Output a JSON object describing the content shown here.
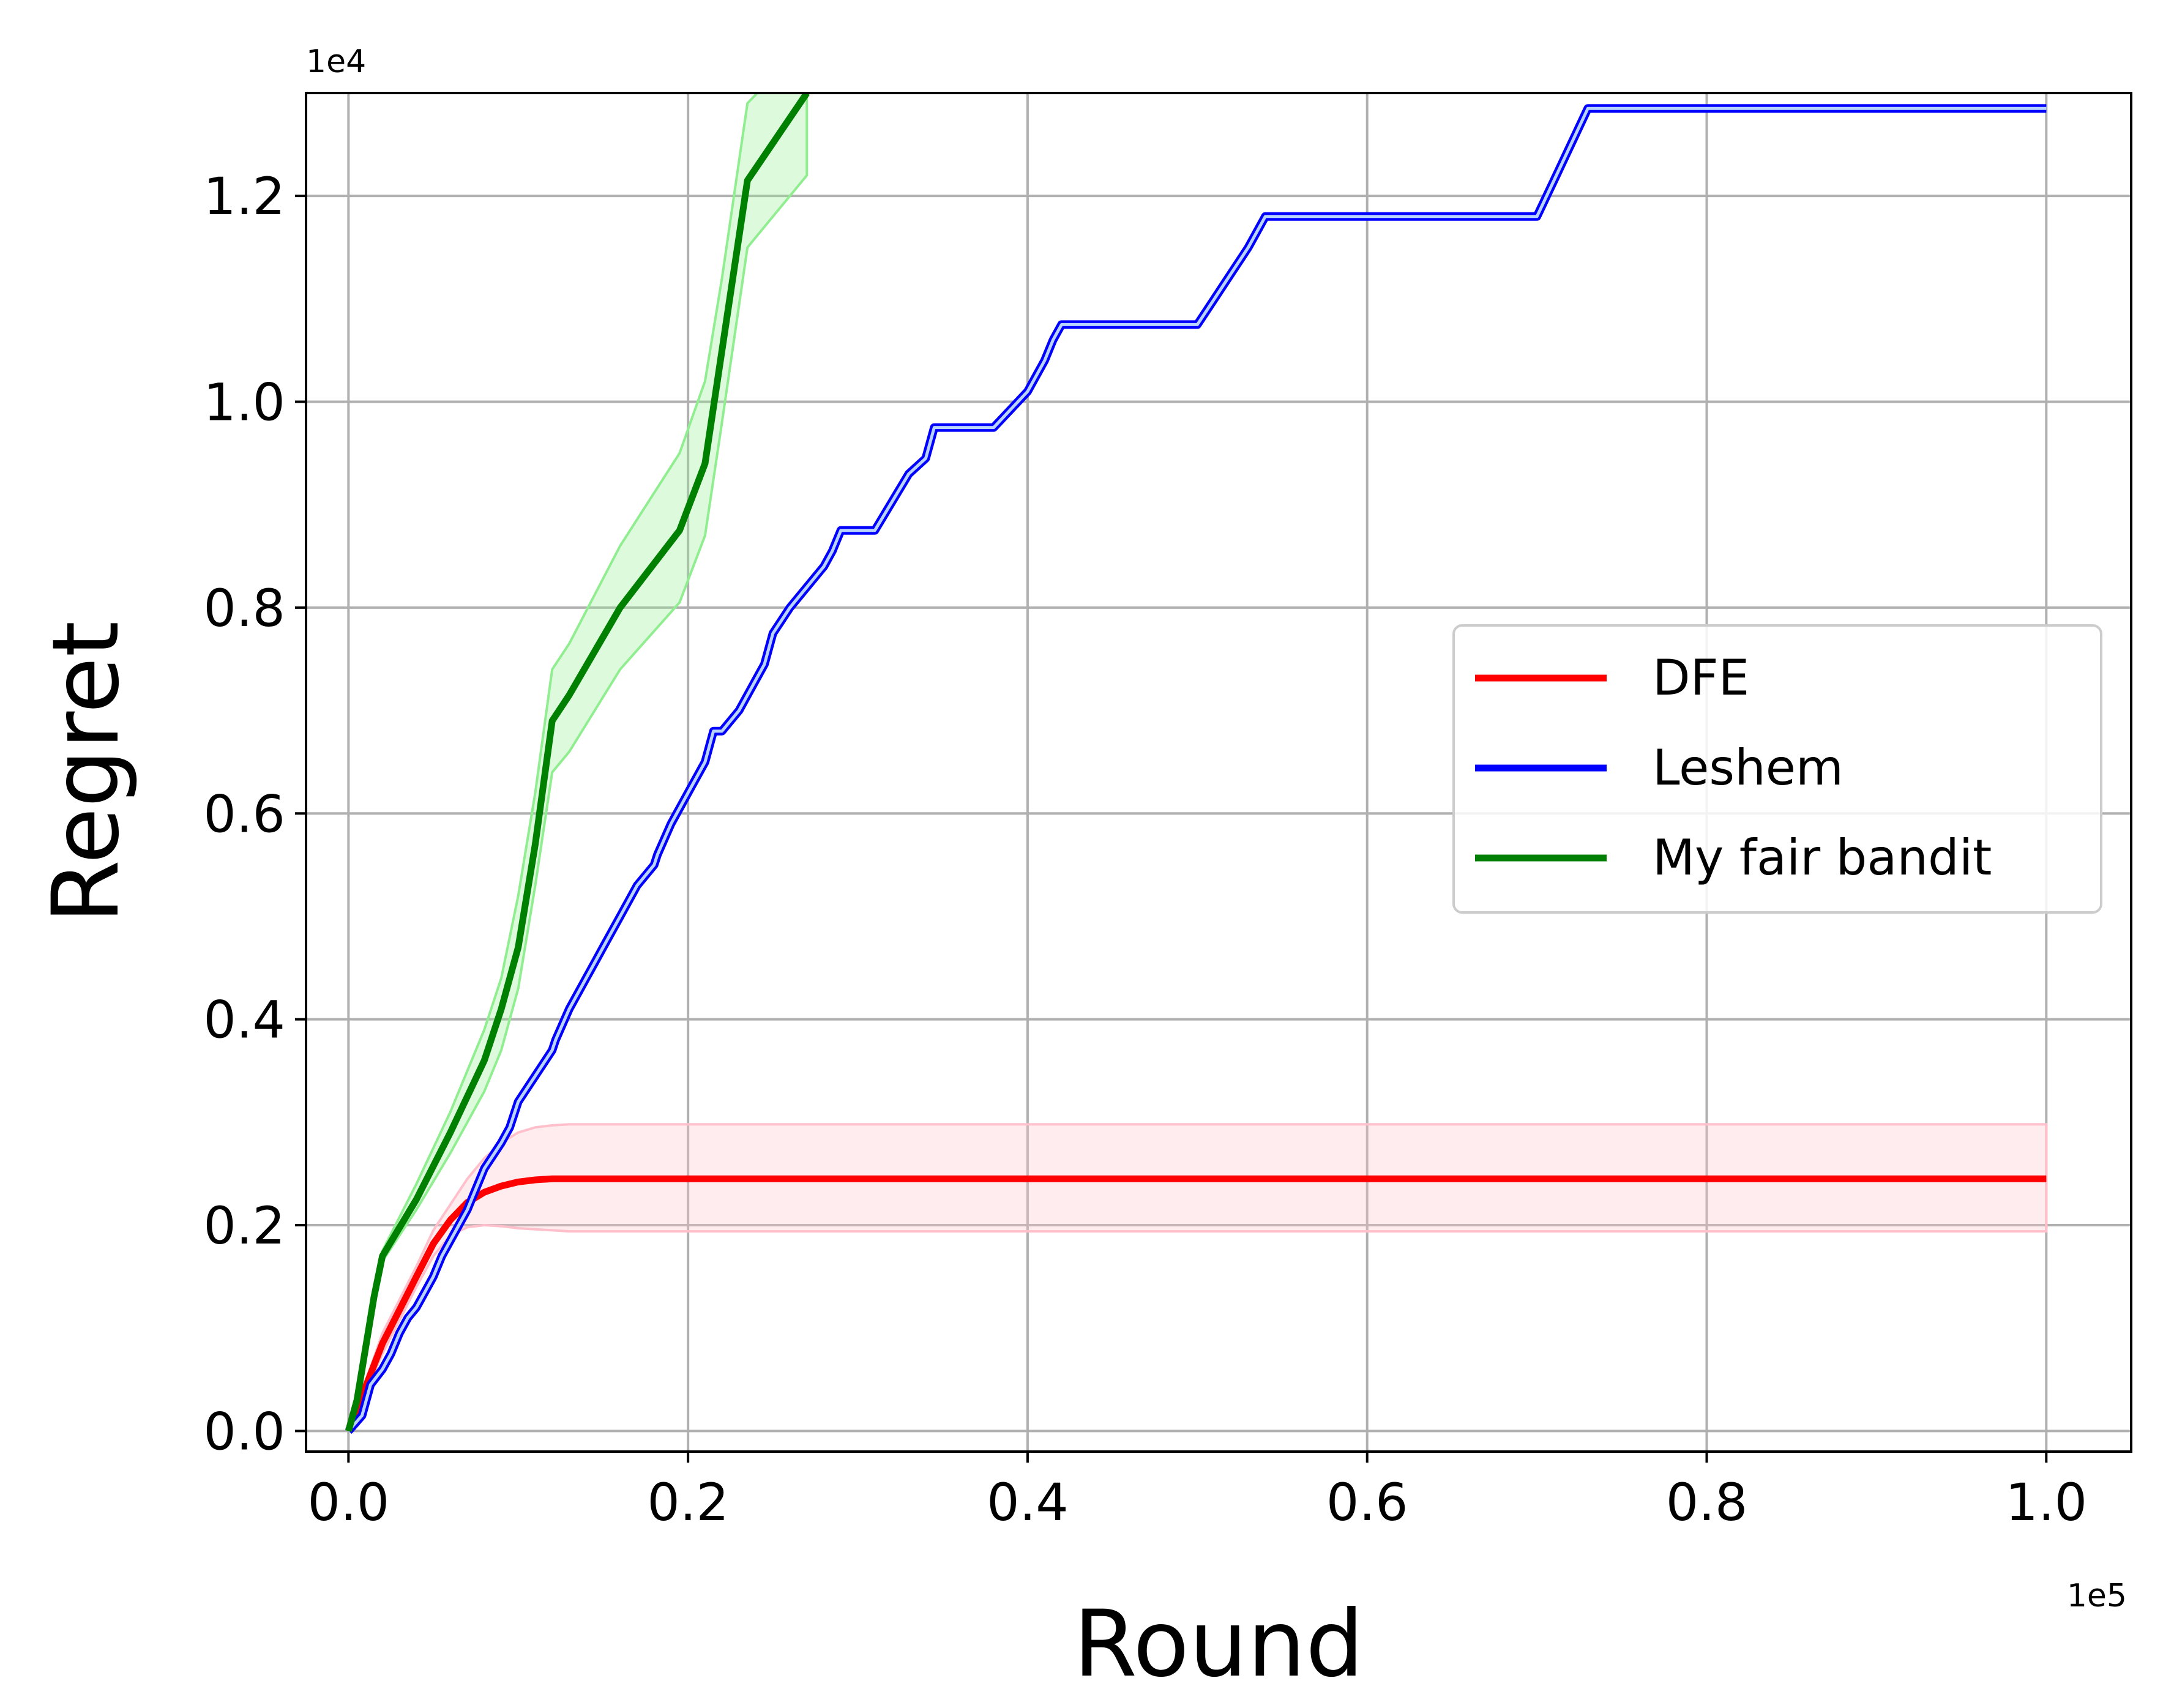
{
  "chart_data": {
    "type": "line",
    "xlabel": "Round",
    "ylabel": "Regret",
    "x_offset_label": "1e5",
    "y_offset_label": "1e4",
    "xlim": [
      -0.025,
      1.05
    ],
    "ylim": [
      -0.02,
      1.3
    ],
    "xticks": [
      0.0,
      0.2,
      0.4,
      0.6,
      0.8,
      1.0
    ],
    "xtick_labels": [
      "0.0",
      "0.2",
      "0.4",
      "0.6",
      "0.8",
      "1.0"
    ],
    "yticks": [
      0.0,
      0.2,
      0.4,
      0.6,
      0.8,
      1.0,
      1.2
    ],
    "ytick_labels": [
      "0.0",
      "0.2",
      "0.4",
      "0.6",
      "0.8",
      "1.0",
      "1.2"
    ],
    "grid": true,
    "legend_position": "center-right",
    "series": [
      {
        "name": "DFE",
        "color": "#ff0000",
        "band_color": "#ffc0cb",
        "x": [
          0.0,
          0.02,
          0.04,
          0.05,
          0.06,
          0.07,
          0.08,
          0.09,
          0.1,
          0.11,
          0.12,
          0.13,
          0.15,
          0.2,
          0.4,
          0.6,
          0.8,
          1.0
        ],
        "y": [
          0.0,
          0.085,
          0.15,
          0.182,
          0.205,
          0.222,
          0.232,
          0.238,
          0.242,
          0.244,
          0.245,
          0.245,
          0.245,
          0.245,
          0.245,
          0.245,
          0.245,
          0.245
        ],
        "lower": [
          0.0,
          0.075,
          0.14,
          0.17,
          0.19,
          0.198,
          0.2,
          0.199,
          0.197,
          0.196,
          0.195,
          0.194,
          0.194,
          0.194,
          0.194,
          0.194,
          0.194,
          0.194
        ],
        "upper": [
          0.0,
          0.095,
          0.16,
          0.195,
          0.22,
          0.245,
          0.265,
          0.28,
          0.29,
          0.295,
          0.297,
          0.298,
          0.298,
          0.298,
          0.298,
          0.298,
          0.298,
          0.298
        ]
      },
      {
        "name": "Leshem",
        "color": "#0000ff",
        "x": [
          0.0,
          0.008,
          0.013,
          0.02,
          0.025,
          0.03,
          0.035,
          0.04,
          0.045,
          0.05,
          0.055,
          0.06,
          0.065,
          0.07,
          0.075,
          0.08,
          0.09,
          0.095,
          0.1,
          0.11,
          0.12,
          0.122,
          0.13,
          0.14,
          0.145,
          0.15,
          0.16,
          0.17,
          0.18,
          0.182,
          0.19,
          0.2,
          0.21,
          0.215,
          0.22,
          0.23,
          0.24,
          0.245,
          0.25,
          0.26,
          0.28,
          0.285,
          0.29,
          0.3,
          0.31,
          0.33,
          0.34,
          0.345,
          0.35,
          0.38,
          0.4,
          0.41,
          0.415,
          0.42,
          0.44,
          0.46,
          0.48,
          0.5,
          0.51,
          0.52,
          0.53,
          0.54,
          0.58,
          0.62,
          0.66,
          0.7,
          0.71,
          0.72,
          0.73,
          0.76,
          0.8,
          0.85,
          0.9,
          0.95,
          1.0
        ],
        "y": [
          0.0,
          0.015,
          0.045,
          0.06,
          0.075,
          0.095,
          0.11,
          0.12,
          0.135,
          0.15,
          0.17,
          0.185,
          0.2,
          0.215,
          0.235,
          0.255,
          0.28,
          0.295,
          0.32,
          0.345,
          0.37,
          0.38,
          0.41,
          0.44,
          0.455,
          0.47,
          0.5,
          0.53,
          0.55,
          0.56,
          0.59,
          0.62,
          0.65,
          0.68,
          0.68,
          0.7,
          0.73,
          0.745,
          0.775,
          0.8,
          0.84,
          0.855,
          0.875,
          0.875,
          0.875,
          0.93,
          0.945,
          0.975,
          0.975,
          0.975,
          1.01,
          1.04,
          1.06,
          1.075,
          1.075,
          1.075,
          1.075,
          1.075,
          1.1,
          1.125,
          1.15,
          1.18,
          1.18,
          1.18,
          1.18,
          1.18,
          1.215,
          1.25,
          1.285,
          1.285,
          1.285,
          1.285,
          1.285,
          1.285,
          1.285
        ]
      },
      {
        "name": "My fair bandit",
        "color": "#008000",
        "band_color": "#90ee90",
        "x": [
          0.0,
          0.005,
          0.01,
          0.015,
          0.02,
          0.04,
          0.06,
          0.08,
          0.09,
          0.1,
          0.11,
          0.12,
          0.13,
          0.16,
          0.195,
          0.21,
          0.22,
          0.235,
          0.27
        ],
        "y": [
          0.0,
          0.03,
          0.08,
          0.13,
          0.17,
          0.225,
          0.29,
          0.36,
          0.41,
          0.47,
          0.57,
          0.69,
          0.715,
          0.8,
          0.875,
          0.94,
          1.05,
          1.215,
          1.3
        ],
        "lower": [
          0.0,
          0.025,
          0.07,
          0.12,
          0.165,
          0.215,
          0.27,
          0.33,
          0.37,
          0.43,
          0.53,
          0.64,
          0.66,
          0.74,
          0.805,
          0.87,
          0.98,
          1.15,
          1.22
        ],
        "upper": [
          0.0,
          0.035,
          0.09,
          0.14,
          0.175,
          0.24,
          0.31,
          0.39,
          0.44,
          0.52,
          0.62,
          0.74,
          0.765,
          0.86,
          0.95,
          1.02,
          1.12,
          1.29,
          1.35
        ]
      }
    ]
  }
}
